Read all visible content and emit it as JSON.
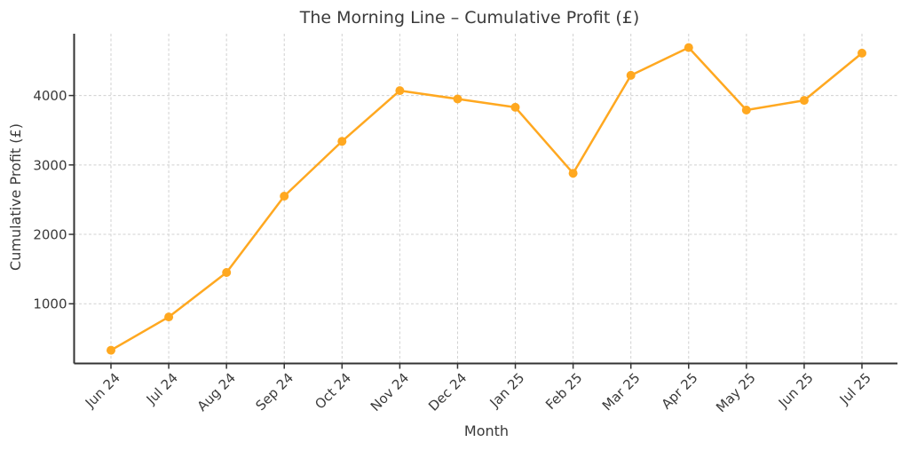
{
  "chart_data": {
    "type": "line",
    "title": "The Morning Line – Cumulative Profit (£)",
    "xlabel": "Month",
    "ylabel": "Cumulative Profit (£)",
    "categories": [
      "Jun 24",
      "Jul 24",
      "Aug 24",
      "Sep 24",
      "Oct 24",
      "Nov 24",
      "Dec 24",
      "Jan 25",
      "Feb 25",
      "Mar 25",
      "Apr 25",
      "May 25",
      "Jun 25",
      "Jul 25"
    ],
    "series": [
      {
        "name": "Cumulative Profit (£)",
        "values": [
          330,
          810,
          1450,
          2550,
          3340,
          4070,
          3950,
          3830,
          2880,
          4290,
          4690,
          3790,
          3930,
          4610
        ]
      }
    ],
    "yticks": [
      1000,
      2000,
      3000,
      4000
    ],
    "ylim": [
      140,
      4890
    ],
    "grid": true,
    "legend_position": "none",
    "marker": "circle"
  },
  "colors": {
    "line": "#FFA820",
    "marker": "#FFA820",
    "grid": "#d0d0d0",
    "spine": "#333333",
    "text": "#3a3a3a",
    "background": "#ffffff"
  }
}
